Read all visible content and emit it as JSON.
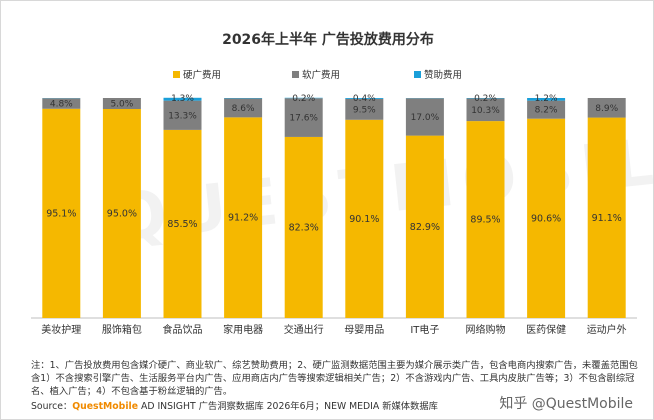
{
  "chart_data": {
    "type": "bar",
    "stacked": true,
    "title": "2026年上半年 广告投放费用分布",
    "categories": [
      "美妆护理",
      "服饰箱包",
      "食品饮品",
      "家用电器",
      "交通出行",
      "母婴用品",
      "IT电子",
      "网络购物",
      "医药保健",
      "运动户外"
    ],
    "series": [
      {
        "name": "硬广费用",
        "color": "#f5b800",
        "values": [
          95.1,
          95.0,
          85.5,
          91.2,
          82.3,
          90.1,
          82.9,
          89.5,
          90.6,
          91.1
        ],
        "labels": [
          "95.1%",
          "95.0%",
          "85.5%",
          "91.2%",
          "82.3%",
          "90.1%",
          "82.9%",
          "89.5%",
          "90.6%",
          "91.1%"
        ]
      },
      {
        "name": "软广费用",
        "color": "#7f7f7f",
        "values": [
          4.8,
          5.0,
          13.3,
          8.6,
          17.6,
          9.5,
          17.0,
          10.3,
          8.2,
          8.9
        ],
        "labels": [
          "4.8%",
          "5.0%",
          "13.3%",
          "8.6%",
          "17.6%",
          "9.5%",
          "17.0%",
          "10.3%",
          "8.2%",
          "8.9%"
        ]
      },
      {
        "name": "赞助费用",
        "color": "#1a9fd9",
        "values": [
          0.1,
          0.0,
          1.3,
          0.2,
          0.2,
          0.4,
          0.1,
          0.2,
          1.2,
          0.0
        ],
        "labels": [
          "",
          "",
          "1.3%",
          "",
          "0.2%",
          "0.4%",
          "",
          "0.2%",
          "1.2%",
          ""
        ]
      }
    ],
    "ylim": [
      0,
      100
    ],
    "grid": false,
    "legend_position": "top-center",
    "xlabel": "",
    "ylabel": ""
  },
  "notes": "注：1、广告投放费用包含媒介硬广、商业软广、综艺赞助费用；2、硬广监测数据范围主要为媒介展示类广告，包含电商内搜索广告，未覆盖范围包含1）不含搜索引擎广告、生活服务平台内广告、应用商店内广告等搜索逻辑相关广告；2）不含游戏内广告、工具内皮肤广告等；3）不包含剧综冠名、植入广告；4）不包含基于粉丝逻辑的广告。",
  "source": {
    "prefix": "Source：",
    "brand": "QuestMobile",
    "rest": " AD INSIGHT 广告洞察数据库 2026年6月；NEW MEDIA 新媒体数据库"
  },
  "watermark": "知乎 @QuestMobile",
  "background_watermark": "QUESTMOBILE"
}
